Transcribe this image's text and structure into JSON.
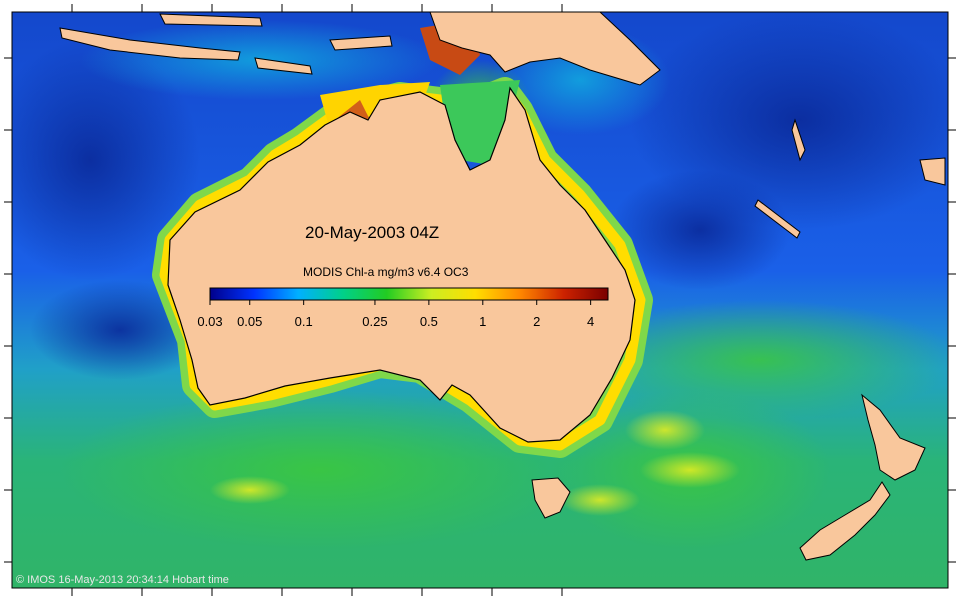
{
  "title": "20-May-2003 04Z",
  "colorbar": {
    "label": "MODIS Chl-a mg/m3 v6.4 OC3",
    "ticks": [
      "0.03",
      "0.05",
      "0.1",
      "0.25",
      "0.5",
      "1",
      "2",
      "4"
    ],
    "tick_values": [
      0.03,
      0.05,
      0.1,
      0.25,
      0.5,
      1,
      2,
      4
    ],
    "range": [
      0.03,
      5
    ],
    "scale": "log",
    "colors": [
      "#00008b",
      "#0033ff",
      "#00b0ff",
      "#00d08a",
      "#22cc22",
      "#ccee22",
      "#ffdd00",
      "#ff8800",
      "#cc2200",
      "#7a0000"
    ]
  },
  "land_color": "#f9c79c",
  "ocean": {
    "open_ocean_color": "#1a52e0",
    "deep_ocean_color": "#0b2a9e",
    "southern_ocean_color": "#28b070",
    "coastal_bloom_color": "#ffdd00"
  },
  "copyright": "© IMOS 16-May-2013 20:34:14 Hobart time"
}
